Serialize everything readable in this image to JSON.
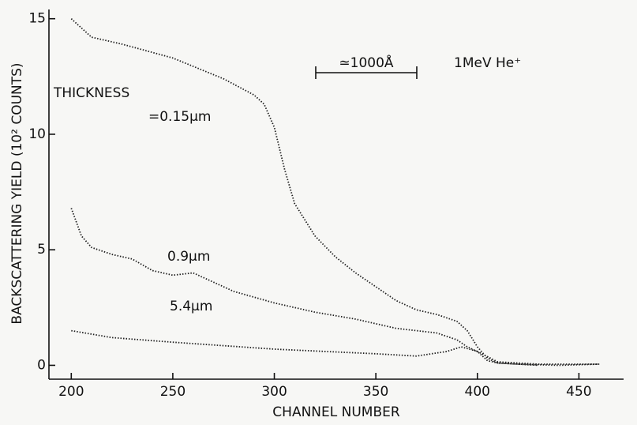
{
  "chart_data": {
    "type": "line",
    "xlabel": "CHANNEL NUMBER",
    "ylabel": "BACKSCATTERING YIELD (10² COUNTS)",
    "annotations": [
      "THICKNESS",
      "≃1000Å",
      "1MeV He⁺"
    ],
    "series": [
      {
        "name": "=0.15µm",
        "color": "#222222",
        "x": [
          200,
          210,
          225,
          250,
          275,
          290,
          295,
          300,
          305,
          310,
          320,
          330,
          340,
          350,
          360,
          370,
          380,
          390,
          395,
          400,
          405,
          410,
          420,
          440,
          460
        ],
        "values": [
          15.0,
          14.2,
          13.9,
          13.3,
          12.4,
          11.7,
          11.3,
          10.3,
          8.5,
          7.0,
          5.6,
          4.7,
          4.0,
          3.4,
          2.8,
          2.4,
          2.2,
          1.9,
          1.5,
          0.8,
          0.3,
          0.1,
          0.05,
          0.0,
          0.05
        ]
      },
      {
        "name": "0.9µm",
        "color": "#222222",
        "x": [
          200,
          205,
          210,
          220,
          230,
          240,
          250,
          260,
          270,
          280,
          300,
          320,
          340,
          360,
          380,
          390,
          395,
          400,
          405,
          410,
          430
        ],
        "values": [
          6.8,
          5.6,
          5.1,
          4.8,
          4.6,
          4.1,
          3.9,
          4.0,
          3.6,
          3.2,
          2.7,
          2.3,
          2.0,
          1.6,
          1.4,
          1.1,
          0.8,
          0.6,
          0.2,
          0.1,
          0.0
        ]
      },
      {
        "name": "5.4µm",
        "color": "#222222",
        "x": [
          200,
          220,
          250,
          300,
          350,
          370,
          385,
          392,
          400,
          410,
          430,
          460
        ],
        "values": [
          1.5,
          1.2,
          1.0,
          0.7,
          0.5,
          0.4,
          0.6,
          0.8,
          0.6,
          0.15,
          0.05,
          0.05
        ]
      }
    ],
    "xlim": [
      189,
      472
    ],
    "ylim": [
      -0.6,
      15.4
    ],
    "xticks": [
      200,
      250,
      300,
      350,
      400,
      450
    ],
    "yticks": [
      0,
      5,
      10,
      15
    ]
  }
}
